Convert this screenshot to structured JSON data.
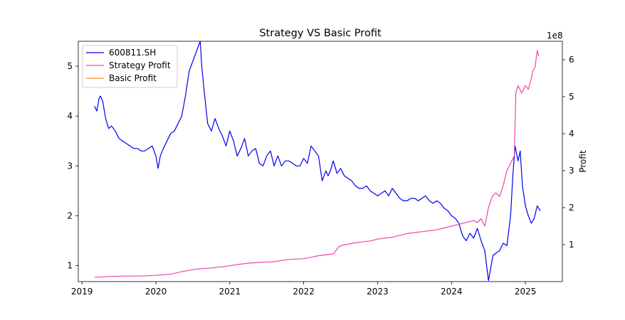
{
  "chart_data": {
    "type": "line",
    "title": "Strategy VS Basic Profit",
    "xlabel": "",
    "ylabel_left": "",
    "ylabel_right": "Profit",
    "right_axis_multiplier": "1e8",
    "xlim": [
      2018.95,
      2025.5
    ],
    "ylim_left": [
      0.68,
      5.5
    ],
    "ylim_right": [
      0.0,
      6.5
    ],
    "x_ticks": [
      2019,
      2020,
      2021,
      2022,
      2023,
      2024,
      2025
    ],
    "x_tick_labels": [
      "2019",
      "2020",
      "2021",
      "2022",
      "2023",
      "2024",
      "2025"
    ],
    "y_ticks_left": [
      1,
      2,
      3,
      4,
      5
    ],
    "y_tick_labels_left": [
      "1",
      "2",
      "3",
      "4",
      "5"
    ],
    "y_ticks_right": [
      1,
      2,
      3,
      4,
      5,
      6
    ],
    "y_tick_labels_right": [
      "1",
      "2",
      "3",
      "4",
      "5",
      "6"
    ],
    "grid": false,
    "legend_position": "top-left",
    "colors": {
      "stock": "#0000ee",
      "strategy": "#ee44aa",
      "basic": "#ff8c1a"
    },
    "series": [
      {
        "name": "600811.SH",
        "axis": "left",
        "x": [
          2019.17,
          2019.2,
          2019.23,
          2019.25,
          2019.28,
          2019.32,
          2019.36,
          2019.4,
          2019.45,
          2019.5,
          2019.55,
          2019.6,
          2019.65,
          2019.7,
          2019.75,
          2019.8,
          2019.85,
          2019.9,
          2019.95,
          2020.0,
          2020.03,
          2020.06,
          2020.1,
          2020.15,
          2020.2,
          2020.25,
          2020.3,
          2020.35,
          2020.4,
          2020.45,
          2020.5,
          2020.55,
          2020.6,
          2020.62,
          2020.65,
          2020.7,
          2020.75,
          2020.8,
          2020.85,
          2020.9,
          2020.95,
          2021.0,
          2021.05,
          2021.1,
          2021.15,
          2021.2,
          2021.25,
          2021.3,
          2021.35,
          2021.4,
          2021.45,
          2021.5,
          2021.55,
          2021.6,
          2021.65,
          2021.7,
          2021.75,
          2021.8,
          2021.85,
          2021.9,
          2021.95,
          2022.0,
          2022.05,
          2022.1,
          2022.15,
          2022.2,
          2022.25,
          2022.3,
          2022.33,
          2022.36,
          2022.4,
          2022.45,
          2022.5,
          2022.55,
          2022.6,
          2022.65,
          2022.7,
          2022.75,
          2022.8,
          2022.85,
          2022.9,
          2022.95,
          2023.0,
          2023.05,
          2023.1,
          2023.15,
          2023.2,
          2023.25,
          2023.3,
          2023.35,
          2023.4,
          2023.45,
          2023.5,
          2023.55,
          2023.6,
          2023.65,
          2023.7,
          2023.75,
          2023.8,
          2023.85,
          2023.9,
          2023.95,
          2024.0,
          2024.05,
          2024.1,
          2024.15,
          2024.2,
          2024.25,
          2024.3,
          2024.35,
          2024.4,
          2024.45,
          2024.5,
          2024.53,
          2024.56,
          2024.6,
          2024.65,
          2024.7,
          2024.75,
          2024.8,
          2024.83,
          2024.86,
          2024.9,
          2024.93,
          2024.96,
          2025.0,
          2025.04,
          2025.08,
          2025.12,
          2025.16,
          2025.2
        ],
        "values": [
          4.2,
          4.1,
          4.35,
          4.4,
          4.3,
          3.95,
          3.75,
          3.8,
          3.7,
          3.55,
          3.5,
          3.45,
          3.4,
          3.35,
          3.35,
          3.3,
          3.3,
          3.35,
          3.4,
          3.2,
          2.95,
          3.2,
          3.35,
          3.5,
          3.65,
          3.7,
          3.85,
          4.0,
          4.4,
          4.9,
          5.1,
          5.3,
          5.5,
          5.0,
          4.55,
          3.85,
          3.7,
          3.95,
          3.75,
          3.6,
          3.4,
          3.7,
          3.5,
          3.2,
          3.35,
          3.55,
          3.2,
          3.3,
          3.35,
          3.05,
          3.0,
          3.2,
          3.3,
          3.0,
          3.2,
          3.0,
          3.1,
          3.1,
          3.05,
          3.0,
          3.0,
          3.15,
          3.05,
          3.4,
          3.3,
          3.2,
          2.7,
          2.9,
          2.8,
          2.9,
          3.1,
          2.85,
          2.95,
          2.8,
          2.75,
          2.7,
          2.6,
          2.55,
          2.55,
          2.6,
          2.5,
          2.45,
          2.4,
          2.45,
          2.5,
          2.4,
          2.55,
          2.45,
          2.35,
          2.3,
          2.3,
          2.35,
          2.35,
          2.3,
          2.35,
          2.4,
          2.3,
          2.25,
          2.3,
          2.25,
          2.15,
          2.1,
          2.0,
          1.95,
          1.85,
          1.6,
          1.5,
          1.65,
          1.55,
          1.75,
          1.5,
          1.3,
          0.7,
          0.95,
          1.2,
          1.25,
          1.3,
          1.45,
          1.4,
          2.0,
          2.8,
          3.4,
          3.1,
          3.3,
          2.6,
          2.2,
          2.0,
          1.85,
          1.95,
          2.2,
          2.1
        ]
      },
      {
        "name": "Strategy Profit",
        "axis": "right",
        "x": [
          2019.17,
          2019.4,
          2019.6,
          2019.8,
          2020.0,
          2020.2,
          2020.35,
          2020.55,
          2020.7,
          2020.9,
          2021.1,
          2021.25,
          2021.4,
          2021.6,
          2021.8,
          2022.0,
          2022.2,
          2022.4,
          2022.48,
          2022.52,
          2022.7,
          2022.9,
          2023.0,
          2023.2,
          2023.4,
          2023.6,
          2023.8,
          2024.0,
          2024.1,
          2024.2,
          2024.3,
          2024.35,
          2024.4,
          2024.45,
          2024.5,
          2024.55,
          2024.6,
          2024.65,
          2024.7,
          2024.75,
          2024.8,
          2024.85,
          2024.87,
          2024.9,
          2024.95,
          2025.0,
          2025.04,
          2025.08,
          2025.1,
          2025.13,
          2025.16,
          2025.18
        ],
        "values": [
          0.12,
          0.14,
          0.15,
          0.15,
          0.17,
          0.2,
          0.27,
          0.34,
          0.36,
          0.4,
          0.46,
          0.5,
          0.52,
          0.54,
          0.6,
          0.62,
          0.7,
          0.75,
          0.95,
          0.98,
          1.05,
          1.1,
          1.15,
          1.2,
          1.3,
          1.35,
          1.4,
          1.5,
          1.55,
          1.6,
          1.65,
          1.6,
          1.7,
          1.5,
          2.0,
          2.3,
          2.4,
          2.3,
          2.6,
          3.0,
          3.2,
          3.4,
          5.1,
          5.3,
          5.1,
          5.3,
          5.2,
          5.5,
          5.7,
          5.8,
          6.25,
          6.1
        ]
      },
      {
        "name": "Basic Profit",
        "axis": "right",
        "x": [],
        "values": []
      }
    ]
  }
}
